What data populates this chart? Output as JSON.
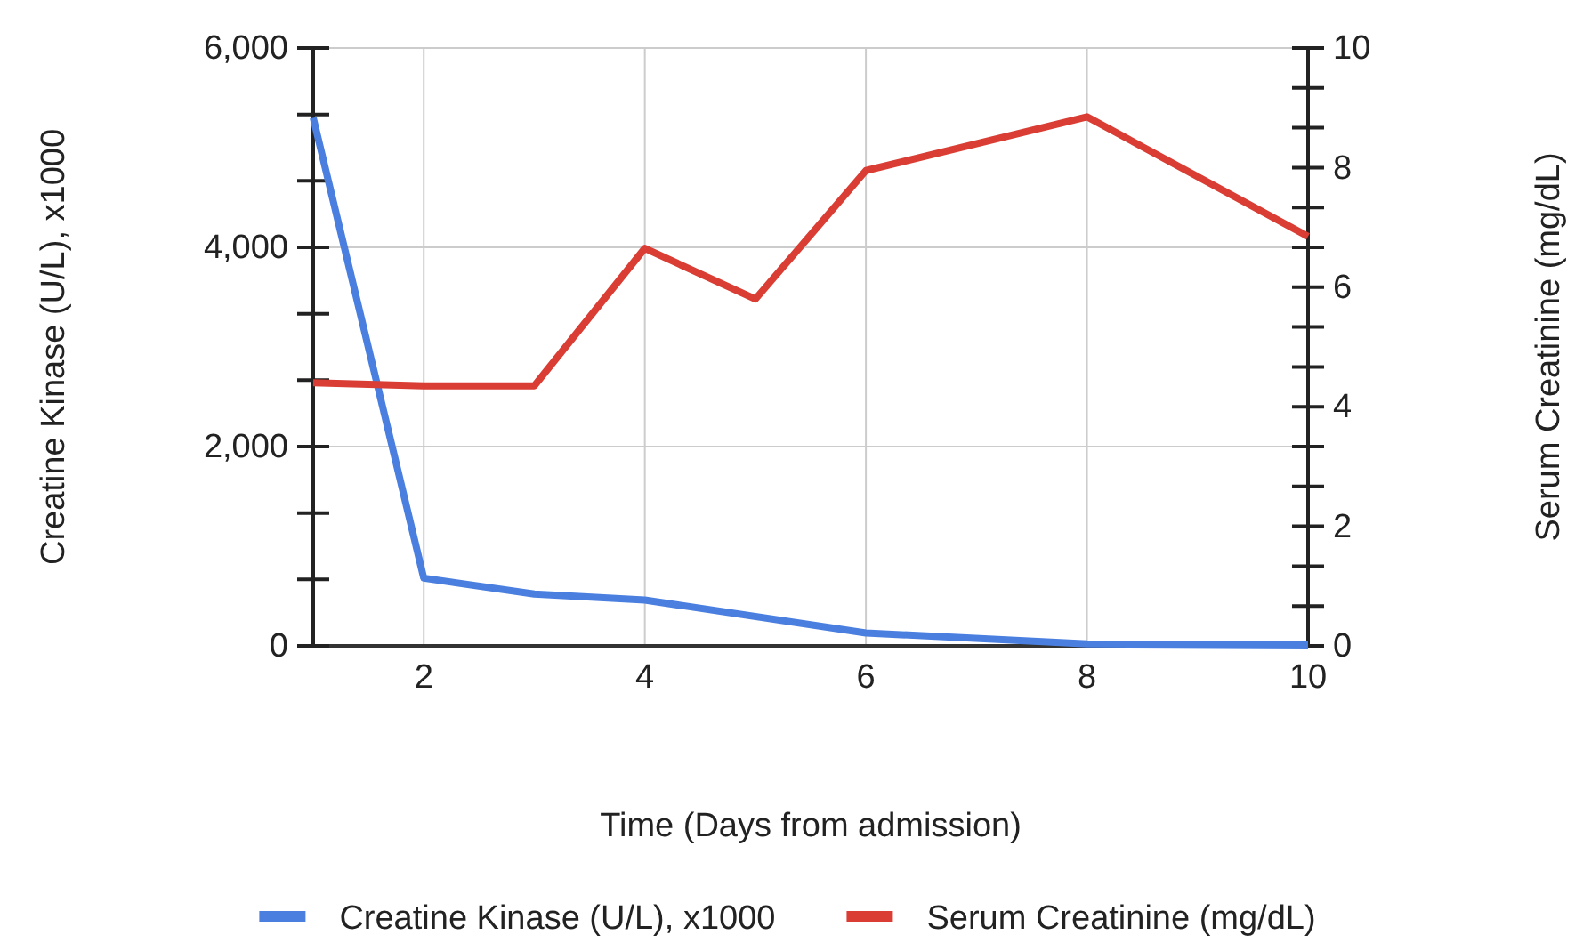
{
  "chart_data": {
    "type": "line",
    "xlabel": "Time (Days from admission)",
    "ylabel": "Creatine Kinase (U/L), x1000",
    "y2label": "Serum Creatinine (mg/dL)",
    "xlim": [
      1,
      10
    ],
    "xticks": [
      2,
      4,
      6,
      8,
      10
    ],
    "ylim": [
      0,
      6000
    ],
    "yticks": [
      0,
      {
        "value": 2000,
        "label": "2,000"
      },
      {
        "value": 4000,
        "label": "4,000"
      },
      {
        "value": 6000,
        "label": "6,000"
      }
    ],
    "y2lim": [
      0,
      10
    ],
    "y2ticks": [
      0,
      2,
      4,
      6,
      8,
      10
    ],
    "grid": true,
    "legend": "bottom",
    "marker": "none",
    "line_style": "solid",
    "series": [
      {
        "name": "Creatine Kinase (U/L), x1000",
        "color": "#4a7fe0",
        "x": [
          1,
          2,
          3,
          4,
          6,
          8,
          10
        ],
        "values": [
          5300,
          680,
          520,
          460,
          130,
          20,
          10
        ]
      },
      {
        "name": "Serum Creatinine (mg/dL)",
        "color": "#d93d33",
        "axis": "y2",
        "x": [
          1,
          2,
          3,
          4,
          5,
          6,
          8,
          10
        ],
        "values": [
          4.4,
          4.35,
          4.35,
          6.65,
          5.8,
          7.95,
          8.85,
          6.85
        ]
      }
    ]
  }
}
